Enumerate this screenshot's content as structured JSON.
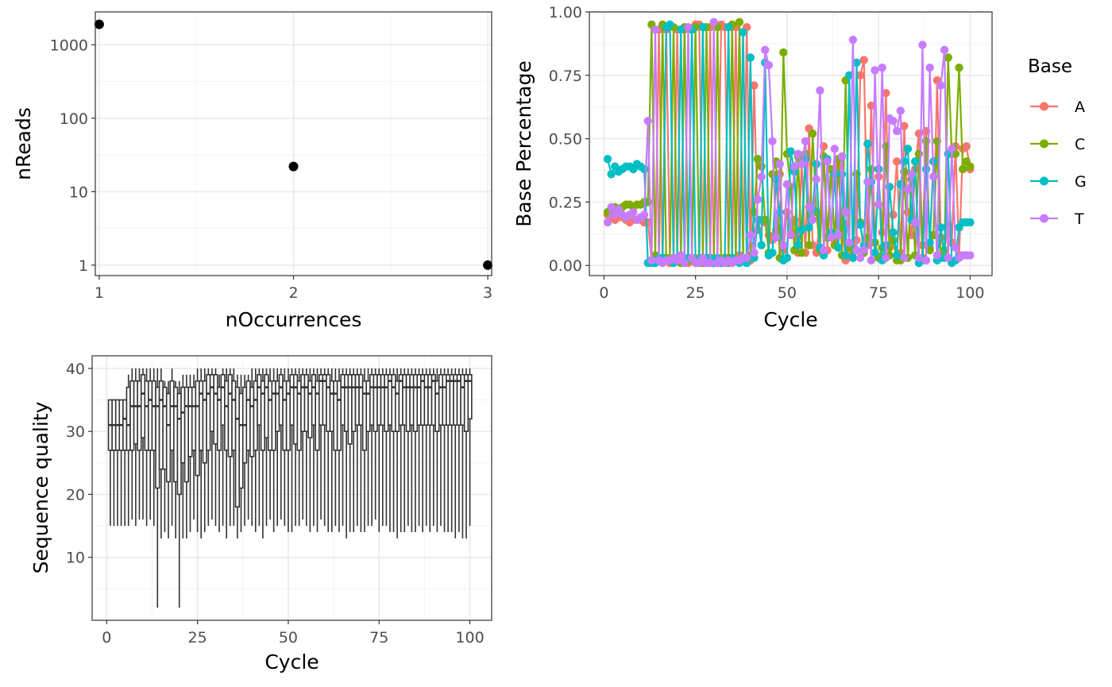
{
  "chart_data": [
    {
      "id": "occurrences",
      "type": "scatter",
      "title": "",
      "xlabel": "nOccurrences",
      "ylabel": "nReads",
      "y_scale": "log10",
      "grid": true,
      "x_ticks": [
        1,
        2,
        3
      ],
      "y_ticks": [
        1,
        10,
        100,
        1000
      ],
      "xlim": [
        0.98,
        3.02
      ],
      "ylim": [
        0.72,
        2800
      ],
      "series": [
        {
          "values": [
            {
              "x": 1,
              "y": 1900
            },
            {
              "x": 2,
              "y": 22
            },
            {
              "x": 3,
              "y": 1
            }
          ]
        }
      ],
      "point_color": "#000000"
    },
    {
      "id": "base-composition",
      "type": "line",
      "title": "",
      "xlabel": "Cycle",
      "ylabel": "Base Percentage",
      "grid": true,
      "x_ticks": [
        0,
        25,
        50,
        75,
        100
      ],
      "y_ticks": [
        0.0,
        0.25,
        0.5,
        0.75,
        1.0
      ],
      "y_tick_labels": [
        "0.00",
        "0.25",
        "0.50",
        "0.75",
        "1.00"
      ],
      "xlim": [
        -4,
        106
      ],
      "ylim": [
        -0.04,
        1.0
      ],
      "markers": true,
      "legend": {
        "title": "Base",
        "position": "right"
      },
      "series": [
        {
          "name": "A",
          "color": "#F8766D",
          "values": [
            0.2,
            0.19,
            0.18,
            0.19,
            0.19,
            0.18,
            0.17,
            0.18,
            0.18,
            0.18,
            0.17,
            0.17,
            0.02,
            0.02,
            0.93,
            0.01,
            0.93,
            0.01,
            0.02,
            0.93,
            0.02,
            0.93,
            0.01,
            0.02,
            0.95,
            0.95,
            0.02,
            0.03,
            0.94,
            0.02,
            0.02,
            0.95,
            0.94,
            0.03,
            0.01,
            0.94,
            0.04,
            0.02,
            0.94,
            0.02,
            0.71,
            0.14,
            0.18,
            0.17,
            0.12,
            0.1,
            0.14,
            0.36,
            0.06,
            0.21,
            0.12,
            0.18,
            0.05,
            0.41,
            0.05,
            0.54,
            0.08,
            0.05,
            0.18,
            0.47,
            0.06,
            0.38,
            0.1,
            0.39,
            0.17,
            0.02,
            0.09,
            0.05,
            0.1,
            0.75,
            0.81,
            0.08,
            0.63,
            0.09,
            0.35,
            0.13,
            0.68,
            0.07,
            0.2,
            0.41,
            0.05,
            0.55,
            0.21,
            0.12,
            0.38,
            0.52,
            0.08,
            0.53,
            0.07,
            0.12,
            0.73,
            0.11,
            0.06,
            0.16,
            0.09,
            0.47,
            0.04,
            0.46,
            0.47,
            0.38
          ]
        },
        {
          "name": "C",
          "color": "#7CAE00",
          "values": [
            0.21,
            0.22,
            0.23,
            0.22,
            0.23,
            0.24,
            0.24,
            0.23,
            0.24,
            0.24,
            0.25,
            0.25,
            0.95,
            0.04,
            0.02,
            0.95,
            0.03,
            0.02,
            0.94,
            0.03,
            0.01,
            0.94,
            0.02,
            0.02,
            0.94,
            0.03,
            0.01,
            0.94,
            0.02,
            0.01,
            0.94,
            0.02,
            0.03,
            0.01,
            0.95,
            0.02,
            0.96,
            0.03,
            0.02,
            0.04,
            0.21,
            0.42,
            0.39,
            0.18,
            0.05,
            0.36,
            0.41,
            0.03,
            0.84,
            0.44,
            0.31,
            0.06,
            0.43,
            0.05,
            0.44,
            0.08,
            0.52,
            0.21,
            0.06,
            0.43,
            0.11,
            0.38,
            0.08,
            0.42,
            0.04,
            0.73,
            0.07,
            0.03,
            0.36,
            0.17,
            0.05,
            0.11,
            0.38,
            0.09,
            0.03,
            0.07,
            0.47,
            0.04,
            0.1,
            0.02,
            0.02,
            0.37,
            0.03,
            0.34,
            0.04,
            0.44,
            0.03,
            0.49,
            0.06,
            0.12,
            0.49,
            0.03,
            0.06,
            0.82,
            0.44,
            0.44,
            0.78,
            0.38,
            0.41,
            0.39
          ]
        },
        {
          "name": "G",
          "color": "#00BFC4",
          "values": [
            0.42,
            0.36,
            0.39,
            0.37,
            0.38,
            0.39,
            0.39,
            0.38,
            0.4,
            0.39,
            0.38,
            0.01,
            0.01,
            0.01,
            0.03,
            0.03,
            0.94,
            0.95,
            0.01,
            0.02,
            0.93,
            0.02,
            0.03,
            0.93,
            0.02,
            0.01,
            0.94,
            0.02,
            0.03,
            0.01,
            0.03,
            0.01,
            0.02,
            0.94,
            0.03,
            0.02,
            0.01,
            0.92,
            0.01,
            0.82,
            0.03,
            0.18,
            0.08,
            0.8,
            0.04,
            0.05,
            0.34,
            0.21,
            0.02,
            0.03,
            0.45,
            0.37,
            0.08,
            0.14,
            0.42,
            0.15,
            0.22,
            0.4,
            0.07,
            0.04,
            0.42,
            0.13,
            0.36,
            0.07,
            0.36,
            0.04,
            0.75,
            0.03,
            0.8,
            0.16,
            0.08,
            0.48,
            0.33,
            0.05,
            0.38,
            0.02,
            0.08,
            0.31,
            0.13,
            0.04,
            0.32,
            0.41,
            0.46,
            0.18,
            0.41,
            0.01,
            0.02,
            0.38,
            0.09,
            0.41,
            0.02,
            0.15,
            0.03,
            0.44,
            0.01,
            0.02,
            0.15,
            0.17,
            0.17,
            0.17
          ]
        },
        {
          "name": "T",
          "color": "#C77CFF",
          "values": [
            0.17,
            0.23,
            0.2,
            0.22,
            0.2,
            0.19,
            0.2,
            0.21,
            0.18,
            0.19,
            0.2,
            0.57,
            0.02,
            0.93,
            0.02,
            0.01,
            0.02,
            0.02,
            0.03,
            0.02,
            0.04,
            0.01,
            0.94,
            0.03,
            0.01,
            0.01,
            0.03,
            0.01,
            0.01,
            0.96,
            0.01,
            0.02,
            0.01,
            0.02,
            0.01,
            0.02,
            0.02,
            0.03,
            0.03,
            0.12,
            0.05,
            0.26,
            0.35,
            0.85,
            0.79,
            0.49,
            0.11,
            0.4,
            0.08,
            0.32,
            0.12,
            0.39,
            0.44,
            0.4,
            0.49,
            0.23,
            0.18,
            0.34,
            0.69,
            0.06,
            0.41,
            0.11,
            0.46,
            0.12,
            0.43,
            0.21,
            0.09,
            0.89,
            0.06,
            0.03,
            0.06,
            0.33,
            0.02,
            0.77,
            0.24,
            0.78,
            0.03,
            0.58,
            0.57,
            0.53,
            0.61,
            0.03,
            0.3,
            0.36,
            0.17,
            0.03,
            0.87,
            0.02,
            0.78,
            0.35,
            0.04,
            0.71,
            0.85,
            0.03,
            0.46,
            0.07,
            0.03,
            0.04,
            0.04,
            0.04
          ]
        }
      ]
    },
    {
      "id": "sequence-quality",
      "type": "boxplot",
      "title": "",
      "xlabel": "Cycle",
      "ylabel": "Sequence quality",
      "grid": true,
      "x_ticks": [
        0,
        25,
        50,
        75,
        100
      ],
      "y_ticks": [
        10,
        20,
        30,
        40
      ],
      "xlim": [
        -4,
        106
      ],
      "ylim": [
        0,
        42
      ],
      "color": "#333333",
      "lower_whisker": [
        15,
        15,
        15,
        15,
        15,
        15,
        16,
        15,
        16,
        16,
        15,
        16,
        15,
        2,
        13,
        14,
        13,
        15,
        13,
        2,
        13,
        13,
        14,
        16,
        14,
        13,
        14,
        15,
        16,
        15,
        14,
        15,
        13,
        15,
        15,
        13,
        14,
        15,
        16,
        15,
        14,
        15,
        13,
        15,
        16,
        14,
        15,
        16,
        15,
        14,
        14,
        15,
        15,
        16,
        15,
        14,
        15,
        14,
        16,
        15,
        14,
        14,
        15,
        14,
        15,
        13,
        14,
        14,
        15,
        14,
        14,
        15,
        15,
        16,
        14,
        15,
        15,
        14,
        14,
        13,
        14,
        14,
        15,
        14,
        14,
        15,
        14,
        15,
        14,
        15,
        14,
        15,
        14,
        14,
        14,
        13,
        14,
        13,
        13,
        15
      ],
      "q1": [
        27,
        27,
        27,
        27,
        27,
        27,
        27,
        28,
        27,
        29,
        27,
        27,
        27,
        21,
        24,
        24,
        22,
        27,
        22,
        20,
        25,
        22,
        26,
        27,
        23,
        27,
        25,
        27,
        30,
        28,
        27,
        31,
        27,
        26,
        27,
        18,
        21,
        25,
        27,
        26,
        27,
        31,
        27,
        29,
        27,
        27,
        30,
        31,
        27,
        27,
        31,
        28,
        27,
        30,
        30,
        29,
        31,
        27,
        31,
        31,
        30,
        30,
        27,
        27,
        31,
        30,
        28,
        30,
        31,
        31,
        27,
        30,
        31,
        30,
        31,
        31,
        30,
        31,
        30,
        30,
        31,
        31,
        30,
        31,
        30,
        31,
        31,
        31,
        31,
        31,
        30,
        31,
        31,
        31,
        31,
        31,
        31,
        31,
        30,
        32
      ],
      "median": [
        31,
        31,
        31,
        31,
        32,
        31,
        34,
        34,
        34,
        36,
        34,
        35,
        34,
        34,
        35,
        34,
        31,
        34,
        34,
        32,
        33,
        34,
        34,
        34,
        34,
        36,
        35,
        36,
        37,
        36,
        35,
        37,
        34,
        36,
        35,
        32,
        31,
        31,
        35,
        34,
        35,
        37,
        36,
        37,
        35,
        36,
        36,
        37,
        35,
        36,
        37,
        37,
        36,
        37,
        37,
        36,
        37,
        36,
        38,
        38,
        37,
        36,
        36,
        35,
        37,
        37,
        37,
        37,
        37,
        37,
        36,
        36,
        37,
        37,
        37,
        37,
        37,
        38,
        37,
        36,
        38,
        37,
        37,
        37,
        37,
        37,
        38,
        37,
        37,
        38,
        36,
        37,
        37,
        38,
        38,
        38,
        38,
        37,
        38,
        38
      ],
      "q3": [
        35,
        35,
        35,
        35,
        35,
        37,
        38,
        38,
        38,
        39,
        38,
        38,
        38,
        37,
        38,
        37,
        36,
        38,
        37,
        36,
        37,
        37,
        37,
        37,
        38,
        38,
        38,
        39,
        39,
        39,
        37,
        39,
        38,
        39,
        38,
        37,
        36,
        37,
        38,
        37,
        38,
        39,
        38,
        39,
        38,
        38,
        38,
        39,
        38,
        38,
        39,
        39,
        38,
        39,
        39,
        38,
        39,
        38,
        39,
        39,
        39,
        38,
        38,
        38,
        39,
        39,
        39,
        39,
        39,
        39,
        38,
        38,
        39,
        39,
        39,
        39,
        39,
        39,
        39,
        38,
        39,
        39,
        39,
        39,
        39,
        39,
        39,
        39,
        39,
        39,
        38,
        39,
        39,
        39,
        39,
        39,
        39,
        39,
        39,
        39
      ],
      "upper_whisker": [
        35,
        35,
        35,
        35,
        35,
        39,
        40,
        40,
        40,
        40,
        40,
        40,
        40,
        40,
        40,
        38,
        38,
        40,
        38,
        38,
        39,
        39,
        39,
        39,
        40,
        40,
        40,
        40,
        40,
        40,
        39,
        40,
        40,
        40,
        40,
        39,
        39,
        39,
        39,
        40,
        40,
        40,
        40,
        40,
        40,
        40,
        40,
        40,
        40,
        40,
        40,
        40,
        40,
        40,
        40,
        40,
        40,
        40,
        40,
        40,
        40,
        40,
        40,
        40,
        40,
        40,
        40,
        40,
        40,
        40,
        40,
        40,
        40,
        40,
        40,
        40,
        40,
        40,
        40,
        40,
        40,
        40,
        40,
        40,
        40,
        40,
        40,
        40,
        40,
        40,
        40,
        40,
        40,
        40,
        40,
        40,
        40,
        40,
        40,
        40
      ]
    }
  ]
}
